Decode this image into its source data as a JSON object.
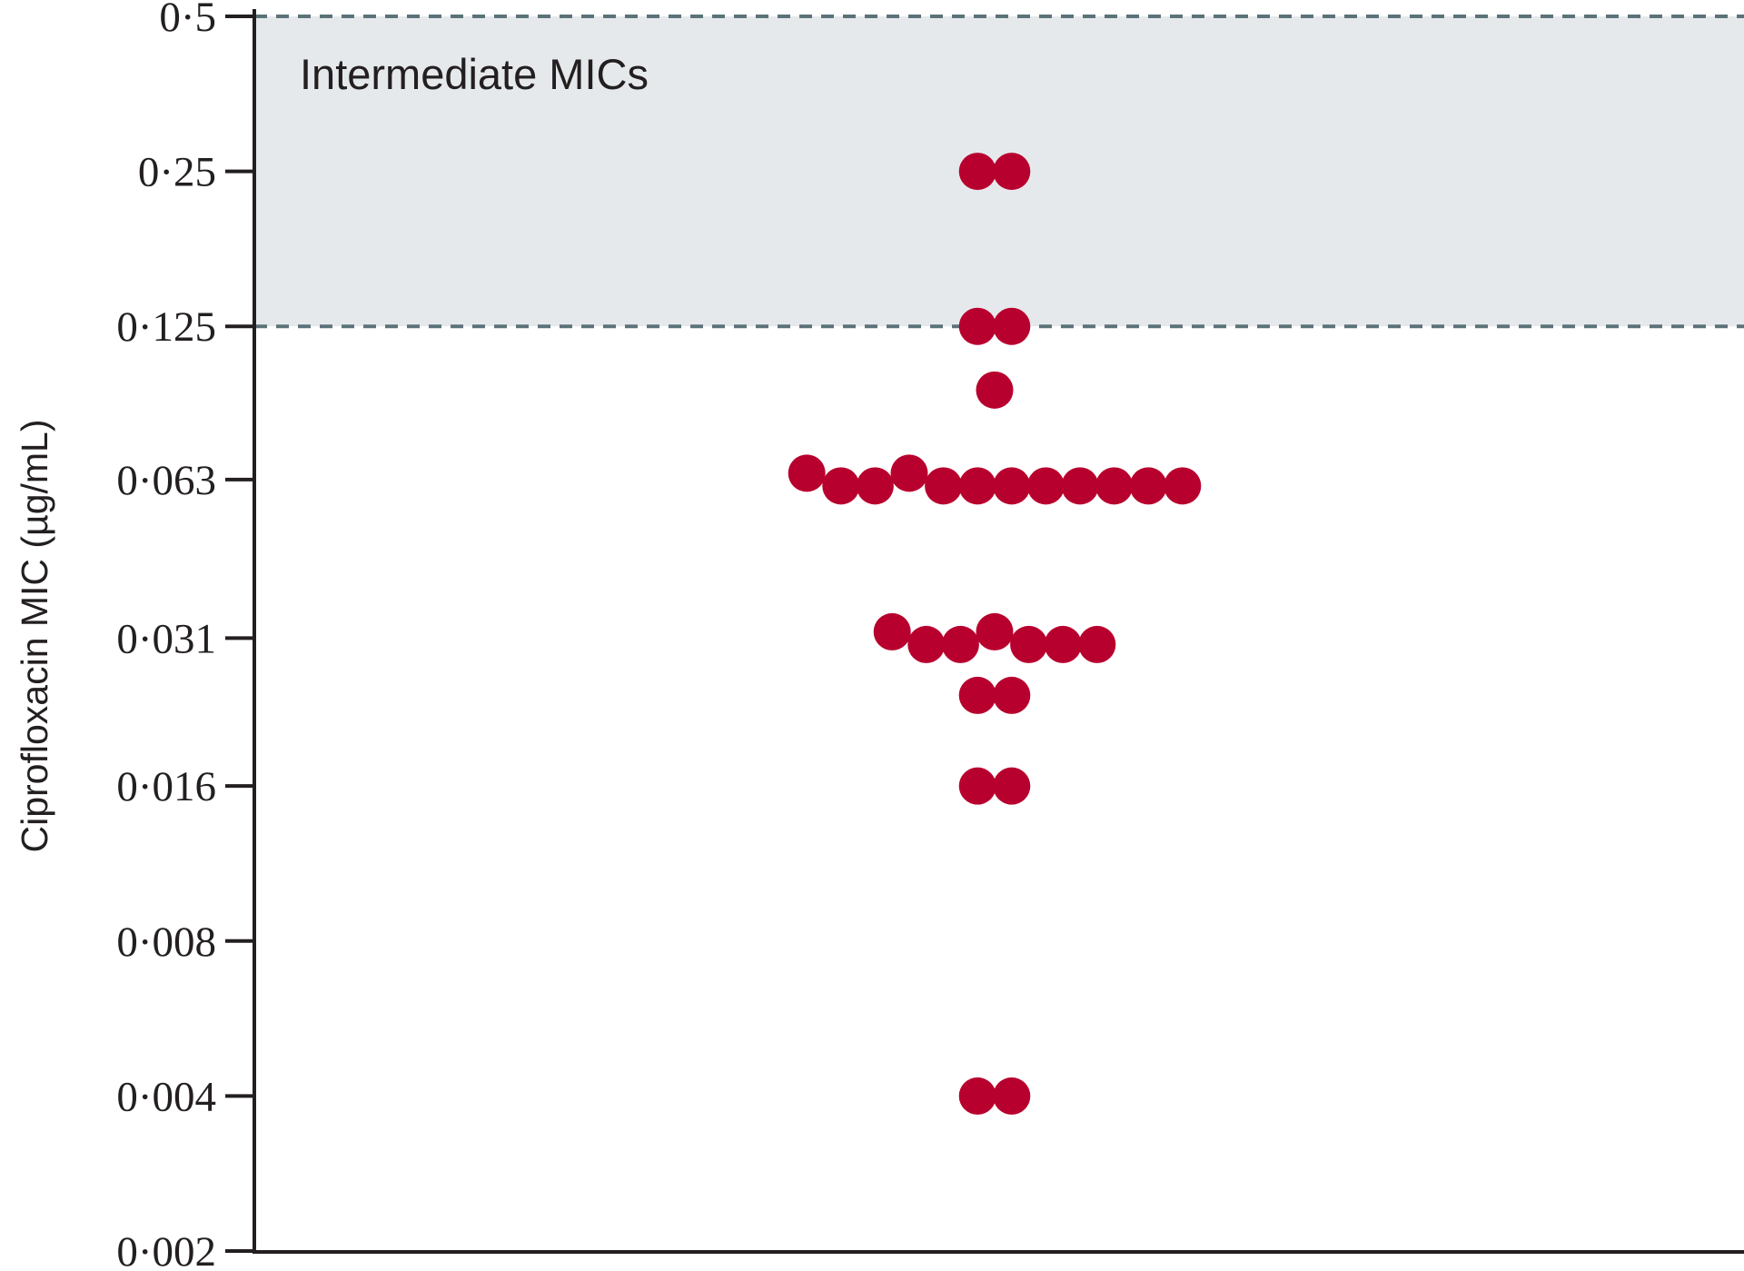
{
  "chart_data": {
    "type": "scatter",
    "title": "",
    "xlabel": "",
    "ylabel": "Ciprofloxacin MIC (µg/mL)",
    "y_scale": "log2",
    "ylim": [
      0.002,
      0.5
    ],
    "y_ticks": [
      0.002,
      0.004,
      0.008,
      0.016,
      0.031,
      0.063,
      0.125,
      0.25,
      0.5
    ],
    "y_tick_labels": [
      "0·002",
      "0·004",
      "0·008",
      "0·016",
      "0·031",
      "0·063",
      "0·125",
      "0·25",
      "0·5"
    ],
    "grid": false,
    "shaded_band": {
      "label": "Intermediate MICs",
      "from": 0.125,
      "to": 0.5
    },
    "point_color": "#b8002e",
    "band_color": "#e6e9ec",
    "dashed_line_color": "#5b7378",
    "axis_color": "#231f20",
    "points": [
      {
        "value": 0.25,
        "count": 2
      },
      {
        "value": 0.125,
        "count": 2
      },
      {
        "value": 0.094,
        "count": 1
      },
      {
        "value": 0.063,
        "count": 12
      },
      {
        "value": 0.031,
        "count": 7
      },
      {
        "value": 0.024,
        "count": 2
      },
      {
        "value": 0.016,
        "count": 2
      },
      {
        "value": 0.004,
        "count": 2
      }
    ]
  }
}
